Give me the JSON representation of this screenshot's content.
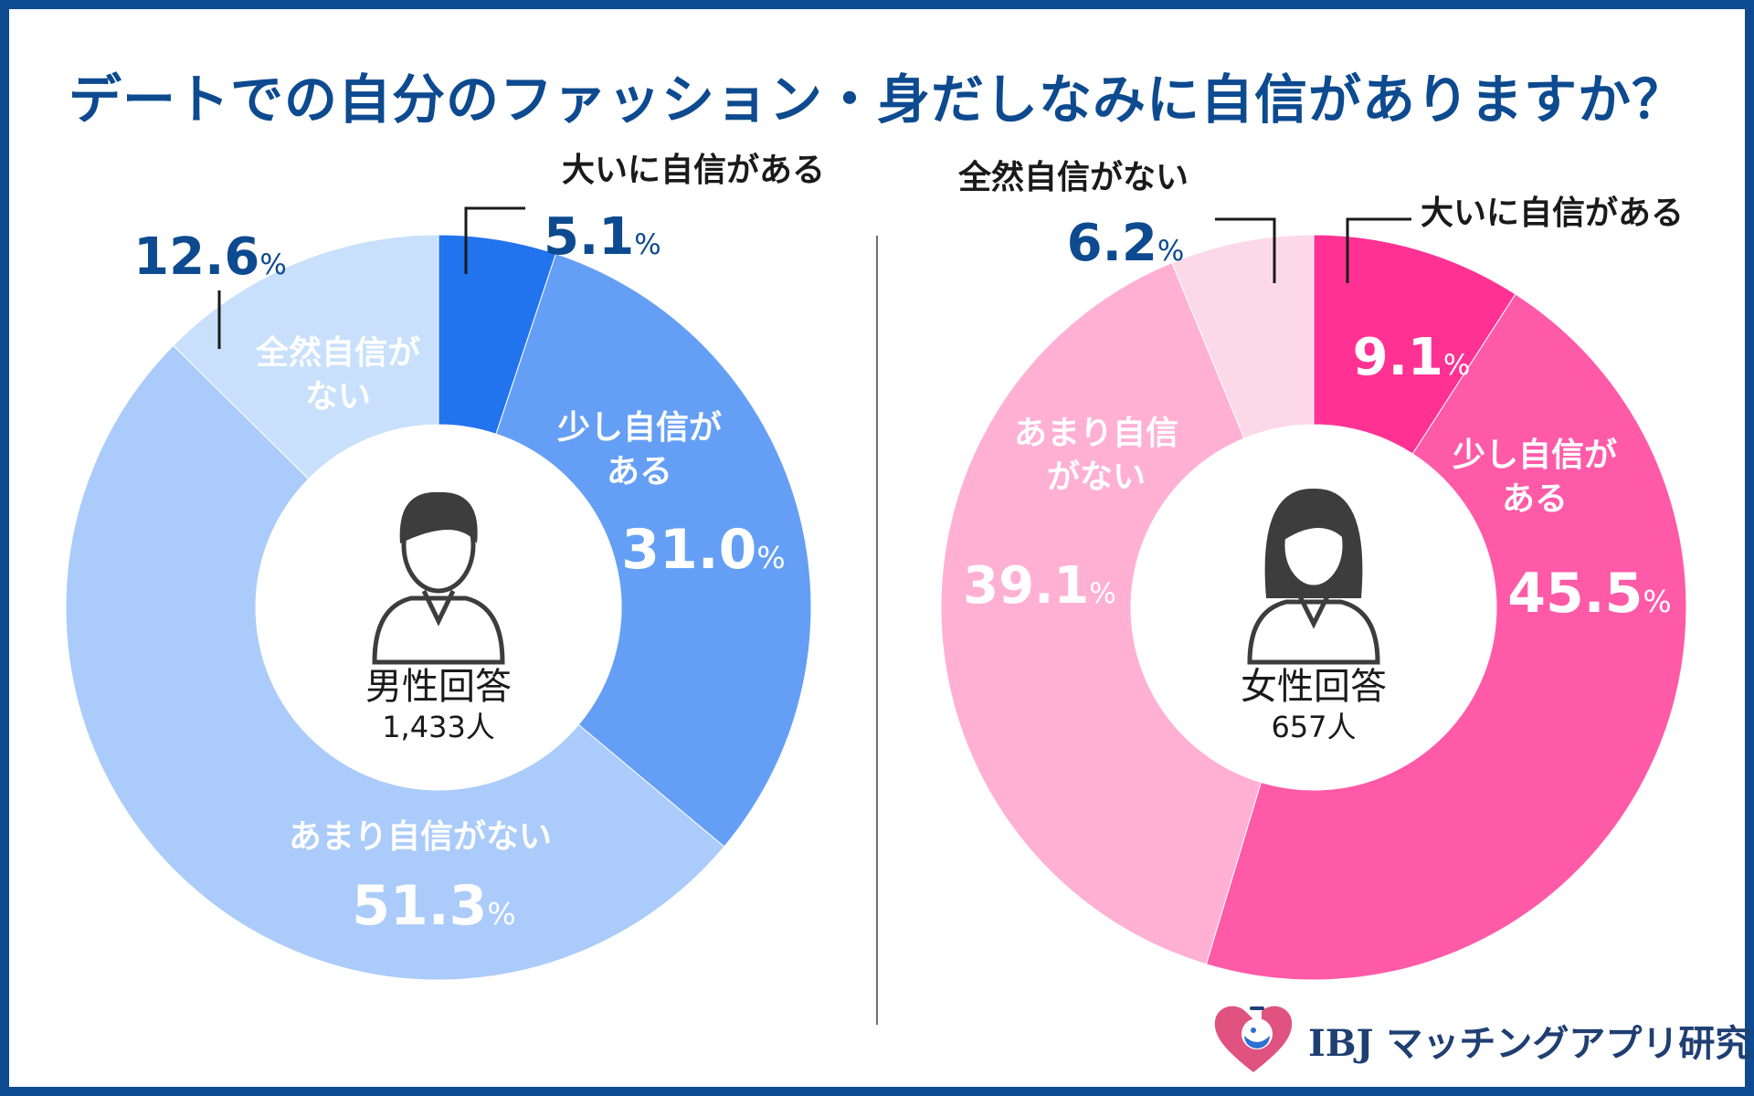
{
  "title": "デートでの自分のファッション・身だしなみに自信がありますか？",
  "colors": {
    "frame": "#0d4a8f",
    "title": "#0d4a8f",
    "male": [
      "#2273ee",
      "#659ff5",
      "#abcbfa",
      "#c8e0fb"
    ],
    "female": [
      "#ff3294",
      "#ff5aa8",
      "#ffb0d3",
      "#fcd9e8"
    ]
  },
  "chart_data": [
    {
      "type": "pie",
      "center_title": "男性回答",
      "center_count": "1,433人",
      "icon": "man-avatar-icon",
      "slices": [
        {
          "label": "大いに自信がある",
          "value": 5.1,
          "value_text": "5.1",
          "unit": "%"
        },
        {
          "label": "少し自信がある",
          "label_lines": [
            "少し自信が",
            "ある"
          ],
          "value": 31.0,
          "value_text": "31.0",
          "unit": "%"
        },
        {
          "label": "あまり自信がない",
          "label_lines": [
            "あまり自信がない"
          ],
          "value": 51.3,
          "value_text": "51.3",
          "unit": "%"
        },
        {
          "label": "全然自信がない",
          "label_lines": [
            "全然自信が",
            "ない"
          ],
          "value": 12.6,
          "value_text": "12.6",
          "unit": "%"
        }
      ]
    },
    {
      "type": "pie",
      "center_title": "女性回答",
      "center_count": "657人",
      "icon": "woman-avatar-icon",
      "slices": [
        {
          "label": "大いに自信がある",
          "value": 9.1,
          "value_text": "9.1",
          "unit": "%"
        },
        {
          "label": "少し自信がある",
          "label_lines": [
            "少し自信が",
            "ある"
          ],
          "value": 45.5,
          "value_text": "45.5",
          "unit": "%"
        },
        {
          "label": "あまり自信がない",
          "label_lines": [
            "あまり自信",
            "がない"
          ],
          "value": 39.1,
          "value_text": "39.1",
          "unit": "%"
        },
        {
          "label": "全然自信がない",
          "value": 6.2,
          "value_text": "6.2",
          "unit": "%"
        }
      ]
    }
  ],
  "brand": {
    "name": "IBJ マッチングアプリ研究室",
    "icon": "heart-flask-logo-icon"
  }
}
